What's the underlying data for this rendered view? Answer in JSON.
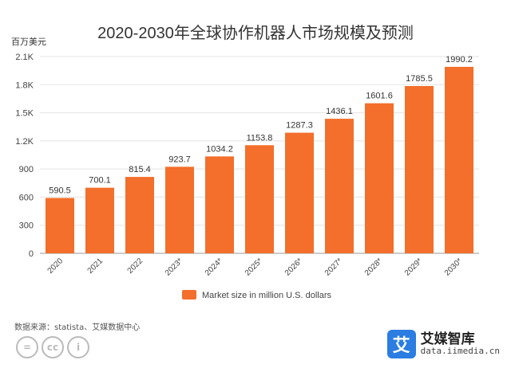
{
  "chart_data": {
    "type": "bar",
    "title": "2020-2030年全球协作机器人市场规模及预测",
    "unit_label": "百万美元",
    "categories": [
      "2020",
      "2021",
      "2022",
      "2023*",
      "2024*",
      "2025*",
      "2026*",
      "2027*",
      "2028*",
      "2029*",
      "2030*"
    ],
    "series": [
      {
        "name": "Market size in million U.S. dollars",
        "values": [
          590.5,
          700.1,
          815.4,
          923.7,
          1034.2,
          1153.8,
          1287.3,
          1436.1,
          1601.6,
          1785.5,
          1990.2
        ],
        "color": "#f36f2b"
      }
    ],
    "ylim": [
      0,
      2100
    ],
    "yticks": [
      0,
      300,
      600,
      900,
      1200,
      1500,
      1800,
      2100
    ],
    "ytick_labels": [
      "0",
      "300",
      "600",
      "900",
      "1.2K",
      "1.5K",
      "1.8K",
      "2.1K"
    ],
    "grid": true,
    "legend": "bottom-center"
  },
  "source": "数据来源：statista、艾媒数据中心",
  "license_icons": [
    "=",
    "cc",
    "i"
  ],
  "brand": {
    "logo_char": "艾",
    "name": "艾媒智库",
    "url": "data.iimedia.cn",
    "color": "#2b7de1"
  }
}
